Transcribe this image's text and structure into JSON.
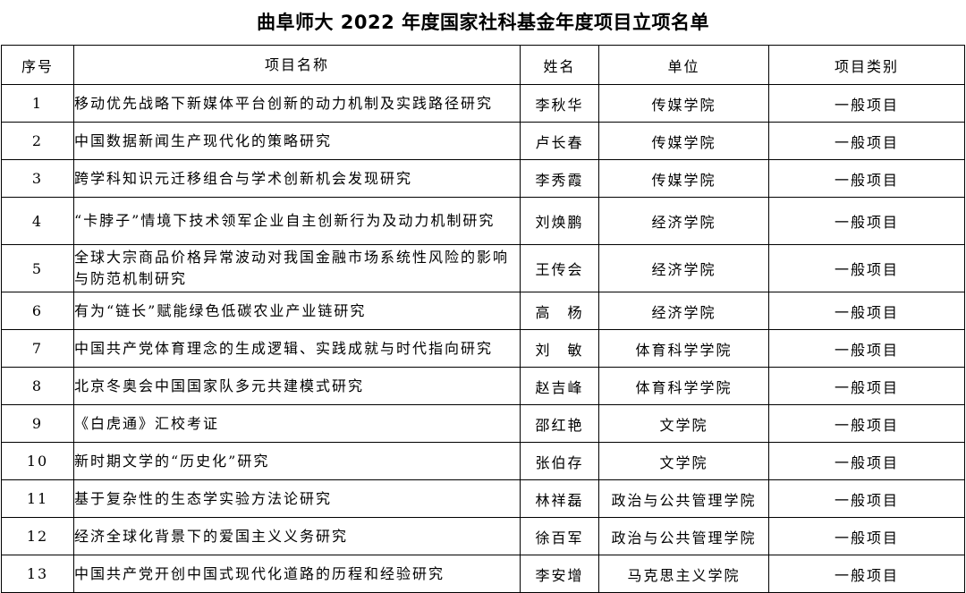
{
  "title": "曲阜师大 2022 年度国家社科基金年度项目立项名单",
  "table": {
    "headers": {
      "no": "序号",
      "project": "项目名称",
      "name": "姓名",
      "unit": "单位",
      "category": "项目类别"
    },
    "rows": [
      {
        "no": "1",
        "project": "移动优先战略下新媒体平台创新的动力机制及实践路径研究",
        "name": "李秋华",
        "unit": "传媒学院",
        "category": "一般项目"
      },
      {
        "no": "2",
        "project": "中国数据新闻生产现代化的策略研究",
        "name": "卢长春",
        "unit": "传媒学院",
        "category": "一般项目"
      },
      {
        "no": "3",
        "project": "跨学科知识元迁移组合与学术创新机会发现研究",
        "name": "李秀霞",
        "unit": "传媒学院",
        "category": "一般项目"
      },
      {
        "no": "4",
        "project": "“卡脖子”情境下技术领军企业自主创新行为及动力机制研究",
        "name": "刘焕鹏",
        "unit": "经济学院",
        "category": "一般项目"
      },
      {
        "no": "5",
        "project": "全球大宗商品价格异常波动对我国金融市场系统性风险的影响与防范机制研究",
        "name": "王传会",
        "unit": "经济学院",
        "category": "一般项目"
      },
      {
        "no": "6",
        "project": "有为“链长”赋能绿色低碳农业产业链研究",
        "name": "高　杨",
        "unit": "经济学院",
        "category": "一般项目"
      },
      {
        "no": "7",
        "project": "中国共产党体育理念的生成逻辑、实践成就与时代指向研究",
        "name": "刘　敏",
        "unit": "体育科学学院",
        "category": "一般项目"
      },
      {
        "no": "8",
        "project": "北京冬奥会中国国家队多元共建模式研究",
        "name": "赵吉峰",
        "unit": "体育科学学院",
        "category": "一般项目"
      },
      {
        "no": "9",
        "project": "《白虎通》汇校考证",
        "name": "邵红艳",
        "unit": "文学院",
        "category": "一般项目"
      },
      {
        "no": "10",
        "project": "新时期文学的“历史化”研究",
        "name": "张伯存",
        "unit": "文学院",
        "category": "一般项目"
      },
      {
        "no": "11",
        "project": "基于复杂性的生态学实验方法论研究",
        "name": "林祥磊",
        "unit": "政治与公共管理学院",
        "category": "一般项目"
      },
      {
        "no": "12",
        "project": "经济全球化背景下的爱国主义义务研究",
        "name": "徐百军",
        "unit": "政治与公共管理学院",
        "category": "一般项目"
      },
      {
        "no": "13",
        "project": "中国共产党开创中国式现代化道路的历程和经验研究",
        "name": "李安增",
        "unit": "马克思主义学院",
        "category": "一般项目"
      }
    ]
  }
}
